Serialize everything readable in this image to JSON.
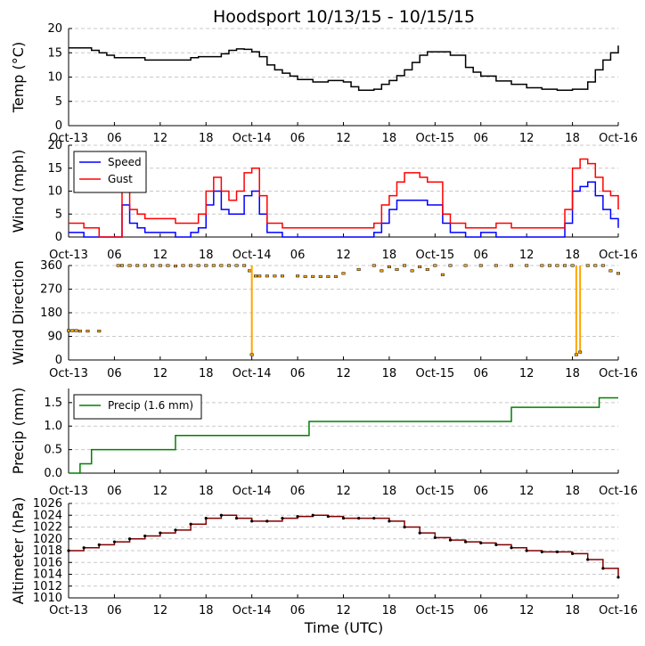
{
  "figure": {
    "title": "Hoodsport 10/13/15 - 10/15/15",
    "xlabel": "Time (UTC)"
  },
  "x_ticks": [
    "Oct-13",
    "06",
    "12",
    "18",
    "Oct-14",
    "06",
    "12",
    "18",
    "Oct-15",
    "06",
    "12",
    "18",
    "Oct-16"
  ],
  "colors": {
    "temp": "#000000",
    "speed": "#0000ff",
    "gust": "#ff0000",
    "dir": "#ffa500",
    "precip": "#008000",
    "alt": "#800000",
    "grid": "#c8c8c8"
  },
  "chart_data": [
    {
      "type": "line",
      "id": "temp",
      "ylabel": "Temp (°C)",
      "ylim": [
        0,
        20
      ],
      "yticks": [
        "0",
        "5",
        "10",
        "15",
        "20"
      ],
      "x_hours": [
        0,
        3,
        4,
        5,
        6,
        7,
        10,
        11,
        15,
        16,
        17,
        20,
        21,
        22,
        23,
        24,
        25,
        26,
        27,
        28,
        29,
        30,
        32,
        34,
        36,
        37,
        38,
        40,
        41,
        42,
        43,
        44,
        45,
        46,
        47,
        48,
        50,
        52,
        53,
        54,
        56,
        58,
        60,
        62,
        64,
        66,
        68,
        69,
        70,
        71,
        72
      ],
      "series": [
        {
          "name": "Temp",
          "values": [
            16,
            15.5,
            15,
            14.5,
            14,
            14,
            13.5,
            13.5,
            13.5,
            14,
            14.2,
            14.8,
            15.5,
            15.8,
            15.7,
            15.2,
            14.2,
            12.5,
            11.5,
            10.8,
            10.2,
            9.5,
            9,
            9.3,
            9,
            8,
            7.3,
            7.5,
            8.5,
            9.3,
            10.3,
            11.5,
            13,
            14.5,
            15.2,
            15.2,
            14.5,
            12,
            11,
            10.2,
            9.2,
            8.5,
            7.8,
            7.5,
            7.3,
            7.5,
            9,
            11.5,
            13.5,
            15,
            16.5
          ]
        }
      ]
    },
    {
      "type": "line",
      "id": "wind",
      "ylabel": "Wind (mph)",
      "ylim": [
        0,
        20
      ],
      "yticks": [
        "0",
        "5",
        "10",
        "15",
        "20"
      ],
      "legend": [
        "Speed",
        "Gust"
      ],
      "x_hours": [
        0,
        2,
        4,
        6,
        7,
        8,
        9,
        10,
        12,
        14,
        16,
        17,
        18,
        19,
        20,
        21,
        22,
        23,
        24,
        25,
        26,
        28,
        30,
        32,
        34,
        36,
        38,
        40,
        41,
        42,
        43,
        44,
        45,
        46,
        47,
        48,
        49,
        50,
        52,
        54,
        56,
        58,
        60,
        62,
        64,
        65,
        66,
        67,
        68,
        69,
        70,
        71,
        72
      ],
      "series": [
        {
          "name": "Speed",
          "values": [
            1,
            0,
            0,
            0,
            7,
            3,
            2,
            1,
            1,
            0,
            1,
            2,
            7,
            10,
            6,
            5,
            5,
            9,
            10,
            5,
            1,
            0,
            0,
            0,
            0,
            0,
            0,
            1,
            3,
            6,
            8,
            8,
            8,
            8,
            7,
            7,
            3,
            1,
            0,
            1,
            0,
            0,
            0,
            0,
            0,
            3,
            10,
            11,
            12,
            9,
            6,
            4,
            2
          ]
        },
        {
          "name": "Gust",
          "values": [
            3,
            2,
            0,
            0,
            10,
            6,
            5,
            4,
            4,
            3,
            3,
            5,
            10,
            13,
            10,
            8,
            10,
            14,
            15,
            9,
            3,
            2,
            2,
            2,
            2,
            2,
            2,
            3,
            7,
            9,
            12,
            14,
            14,
            13,
            12,
            12,
            5,
            3,
            2,
            2,
            3,
            2,
            2,
            2,
            2,
            6,
            15,
            17,
            16,
            13,
            10,
            9,
            6
          ]
        }
      ]
    },
    {
      "type": "scatter",
      "id": "wind_dir",
      "ylabel": "Wind Direction",
      "ylim": [
        0,
        360
      ],
      "yticks": [
        "0",
        "90",
        "180",
        "270",
        "360"
      ],
      "x_hours": [
        0,
        0.5,
        1,
        1.5,
        2.5,
        4,
        6.5,
        7,
        8,
        9,
        10,
        11,
        12,
        13,
        14,
        15,
        16,
        17,
        18,
        19,
        20,
        21,
        22,
        23,
        23.7,
        24,
        24.5,
        25,
        26,
        27,
        28,
        30,
        31,
        32,
        33,
        34,
        35,
        36,
        38,
        40,
        41,
        42,
        43,
        44,
        45,
        46,
        47,
        48,
        49,
        50,
        52,
        54,
        56,
        58,
        60,
        62,
        63,
        64,
        65,
        66,
        66.5,
        67,
        68,
        69,
        70,
        71,
        72
      ],
      "series": [
        {
          "name": "Direction",
          "values": [
            112,
            112,
            112,
            110,
            110,
            110,
            360,
            360,
            360,
            360,
            360,
            360,
            360,
            360,
            358,
            360,
            360,
            360,
            360,
            360,
            360,
            360,
            360,
            360,
            340,
            20,
            320,
            320,
            320,
            320,
            320,
            320,
            318,
            318,
            318,
            318,
            318,
            330,
            345,
            360,
            340,
            355,
            345,
            360,
            340,
            355,
            345,
            360,
            325,
            360,
            360,
            360,
            360,
            360,
            360,
            360,
            360,
            360,
            360,
            360,
            20,
            30,
            360,
            360,
            360,
            340,
            330
          ]
        }
      ]
    },
    {
      "type": "line",
      "id": "precip",
      "ylabel": "Precip (mm)",
      "ylim": [
        0,
        1.8
      ],
      "yticks": [
        "0.0",
        "0.5",
        "1.0",
        "1.5"
      ],
      "legend": [
        "Precip (1.6 mm)"
      ],
      "x_hours": [
        0,
        1.5,
        3,
        14,
        31.5,
        58,
        69.5,
        72
      ],
      "series": [
        {
          "name": "Precip (1.6 mm)",
          "values": [
            0.0,
            0.2,
            0.5,
            0.8,
            1.1,
            1.4,
            1.6,
            1.6
          ]
        }
      ]
    },
    {
      "type": "line",
      "id": "altimeter",
      "ylabel": "Altimeter (hPa)",
      "ylim": [
        1010,
        1026
      ],
      "yticks": [
        "1010",
        "1012",
        "1014",
        "1016",
        "1018",
        "1020",
        "1022",
        "1024",
        "1026"
      ],
      "x_hours": [
        0,
        2,
        4,
        6,
        8,
        10,
        12,
        14,
        16,
        18,
        20,
        22,
        24,
        26,
        28,
        30,
        32,
        34,
        36,
        38,
        40,
        42,
        44,
        46,
        48,
        50,
        52,
        54,
        56,
        58,
        60,
        62,
        64,
        66,
        68,
        70,
        72
      ],
      "series": [
        {
          "name": "Altimeter",
          "values": [
            1018,
            1018.5,
            1019,
            1019.5,
            1020,
            1020.5,
            1021,
            1021.5,
            1022.5,
            1023.5,
            1024,
            1023.5,
            1023,
            1023,
            1023.5,
            1023.8,
            1024,
            1023.8,
            1023.5,
            1023.5,
            1023.5,
            1023,
            1022,
            1021,
            1020.2,
            1019.8,
            1019.5,
            1019.3,
            1019,
            1018.5,
            1018,
            1017.8,
            1017.8,
            1017.5,
            1016.5,
            1015,
            1013.5
          ]
        }
      ]
    }
  ]
}
